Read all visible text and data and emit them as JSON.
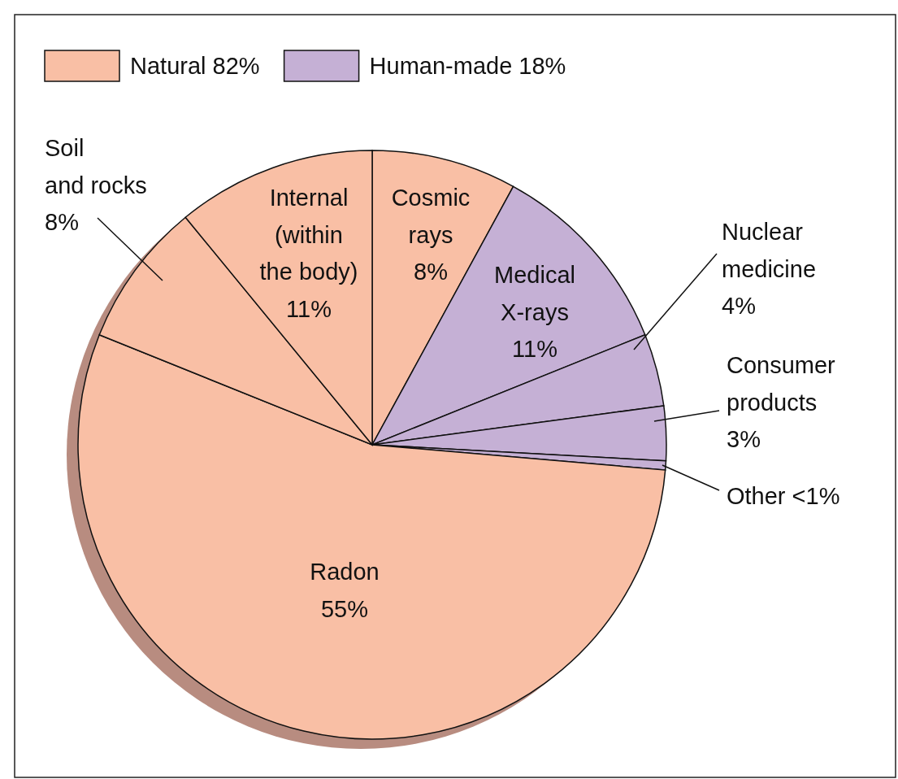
{
  "chart_data": {
    "type": "pie",
    "categories": [
      "Cosmic rays",
      "Medical X-rays",
      "Nuclear medicine",
      "Consumer products",
      "Other",
      "Radon",
      "Soil and rocks",
      "Internal (within the body)"
    ],
    "values": [
      8,
      11,
      4,
      3,
      0.5,
      55,
      8,
      11
    ],
    "value_labels": [
      "8%",
      "11%",
      "4%",
      "3%",
      "<1%",
      "55%",
      "8%",
      "11%"
    ],
    "colors": [
      "#f9bfa5",
      "#c5b0d5",
      "#c5b0d5",
      "#c5b0d5",
      "#c5b0d5",
      "#f9bfa5",
      "#f9bfa5",
      "#f9bfa5"
    ],
    "annotations": [
      "Natural 82%",
      "Human-made 18%"
    ]
  }
}
